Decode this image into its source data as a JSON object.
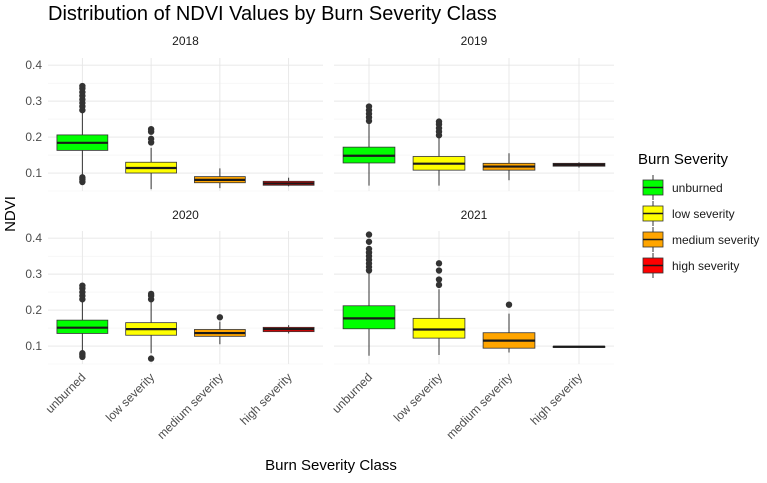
{
  "chart_data": {
    "type": "boxplot",
    "title": "Distribution of NDVI Values by Burn Severity Class",
    "xlabel": "Burn Severity Class",
    "ylabel": "NDVI",
    "ylim": [
      0.05,
      0.42
    ],
    "yticks": [
      0.1,
      0.2,
      0.3,
      0.4
    ],
    "ytick_labels": [
      "0.1",
      "0.2",
      "0.3",
      "0.4"
    ],
    "grid": true,
    "categories": [
      "unburned",
      "low severity",
      "medium severity",
      "high severity"
    ],
    "legend": {
      "title": "Burn Severity",
      "position": "right",
      "items": [
        {
          "label": "unburned",
          "color": "#00ff00"
        },
        {
          "label": "low severity",
          "color": "#ffff00"
        },
        {
          "label": "medium severity",
          "color": "#ffa500"
        },
        {
          "label": "high severity",
          "color": "#ff0000"
        }
      ]
    },
    "panels": [
      {
        "label": "2018",
        "boxes": [
          {
            "category": "unburned",
            "whisker_low": 0.09,
            "q1": 0.163,
            "median": 0.184,
            "q3": 0.206,
            "whisker_high": 0.272,
            "outliers": [
              0.075,
              0.082,
              0.088,
              0.275,
              0.285,
              0.295,
              0.305,
              0.315,
              0.325,
              0.335,
              0.342
            ]
          },
          {
            "category": "low severity",
            "whisker_low": 0.055,
            "q1": 0.1,
            "median": 0.114,
            "q3": 0.13,
            "whisker_high": 0.17,
            "outliers": [
              0.185,
              0.195,
              0.215,
              0.222
            ]
          },
          {
            "category": "medium severity",
            "whisker_low": 0.058,
            "q1": 0.073,
            "median": 0.081,
            "q3": 0.09,
            "whisker_high": 0.113,
            "outliers": []
          },
          {
            "category": "high severity",
            "whisker_low": 0.063,
            "q1": 0.066,
            "median": 0.071,
            "q3": 0.077,
            "whisker_high": 0.087,
            "outliers": []
          }
        ]
      },
      {
        "label": "2019",
        "boxes": [
          {
            "category": "unburned",
            "whisker_low": 0.065,
            "q1": 0.128,
            "median": 0.148,
            "q3": 0.172,
            "whisker_high": 0.24,
            "outliers": [
              0.245,
              0.255,
              0.265,
              0.275,
              0.285
            ]
          },
          {
            "category": "low severity",
            "whisker_low": 0.065,
            "q1": 0.108,
            "median": 0.126,
            "q3": 0.146,
            "whisker_high": 0.198,
            "outliers": [
              0.205,
              0.215,
              0.225,
              0.235,
              0.243
            ]
          },
          {
            "category": "medium severity",
            "whisker_low": 0.08,
            "q1": 0.108,
            "median": 0.118,
            "q3": 0.127,
            "whisker_high": 0.155,
            "outliers": []
          },
          {
            "category": "high severity",
            "whisker_low": 0.115,
            "q1": 0.119,
            "median": 0.123,
            "q3": 0.127,
            "whisker_high": 0.13,
            "outliers": []
          }
        ]
      },
      {
        "label": "2020",
        "boxes": [
          {
            "category": "unburned",
            "whisker_low": 0.083,
            "q1": 0.135,
            "median": 0.151,
            "q3": 0.172,
            "whisker_high": 0.225,
            "outliers": [
              0.07,
              0.075,
              0.08,
              0.23,
              0.24,
              0.25,
              0.26,
              0.268
            ]
          },
          {
            "category": "low severity",
            "whisker_low": 0.08,
            "q1": 0.13,
            "median": 0.147,
            "q3": 0.165,
            "whisker_high": 0.225,
            "outliers": [
              0.065,
              0.23,
              0.24,
              0.245
            ]
          },
          {
            "category": "medium severity",
            "whisker_low": 0.105,
            "q1": 0.127,
            "median": 0.136,
            "q3": 0.146,
            "whisker_high": 0.168,
            "outliers": [
              0.18
            ]
          },
          {
            "category": "high severity",
            "whisker_low": 0.135,
            "q1": 0.14,
            "median": 0.147,
            "q3": 0.152,
            "whisker_high": 0.158,
            "outliers": []
          }
        ]
      },
      {
        "label": "2021",
        "boxes": [
          {
            "category": "unburned",
            "whisker_low": 0.073,
            "q1": 0.148,
            "median": 0.177,
            "q3": 0.212,
            "whisker_high": 0.305,
            "outliers": [
              0.31,
              0.32,
              0.33,
              0.34,
              0.35,
              0.36,
              0.37,
              0.39,
              0.41
            ]
          },
          {
            "category": "low severity",
            "whisker_low": 0.075,
            "q1": 0.122,
            "median": 0.146,
            "q3": 0.177,
            "whisker_high": 0.258,
            "outliers": [
              0.27,
              0.285,
              0.31,
              0.33
            ]
          },
          {
            "category": "medium severity",
            "whisker_low": 0.082,
            "q1": 0.094,
            "median": 0.115,
            "q3": 0.137,
            "whisker_high": 0.19,
            "outliers": [
              0.215
            ]
          },
          {
            "category": "high severity",
            "whisker_low": 0.096,
            "q1": 0.097,
            "median": 0.098,
            "q3": 0.099,
            "whisker_high": 0.1,
            "outliers": []
          }
        ]
      }
    ]
  }
}
